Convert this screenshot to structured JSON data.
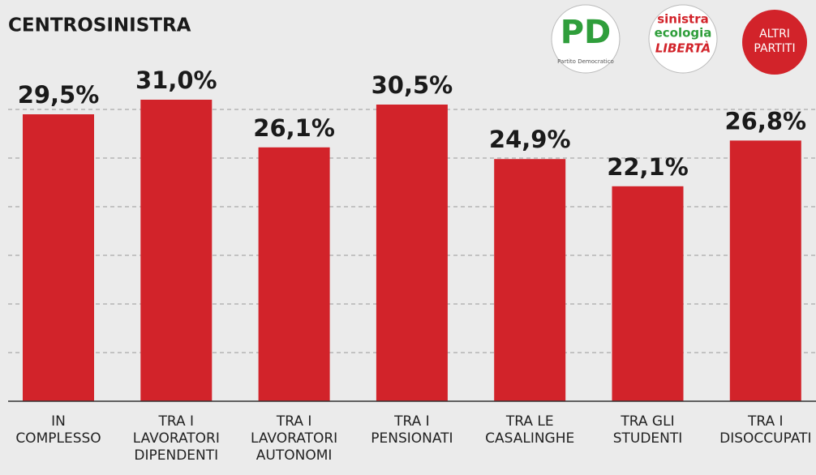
{
  "chart_data": {
    "type": "bar",
    "title": "CENTROSINISTRA",
    "categories": [
      "IN\nCOMPLESSO",
      "TRA I\nLAVORATORI\nDIPENDENTI",
      "TRA I\nLAVORATORI\nAUTONOMI",
      "TRA I\nPENSIONATI",
      "TRA LE\nCASALINGHE",
      "TRA GLI\nSTUDENTI",
      "TRA I\nDISOCCUPATI"
    ],
    "values": [
      29.5,
      31.0,
      26.1,
      30.5,
      24.9,
      22.1,
      26.8
    ],
    "value_labels": [
      "29,5%",
      "31,0%",
      "26,1%",
      "30,5%",
      "24,9%",
      "22,1%",
      "26,8%"
    ],
    "color": "#d2232a",
    "ylim": [
      0,
      35
    ],
    "yticks": [
      5,
      10,
      15,
      20,
      25,
      30
    ],
    "grid": true
  },
  "logos": {
    "pd": "PD",
    "pd_caption": "Partito Democratico",
    "sel": [
      "sinistra",
      "ecologia",
      "LIBERTÀ"
    ],
    "altri": [
      "ALTRI",
      "PARTITI"
    ]
  }
}
